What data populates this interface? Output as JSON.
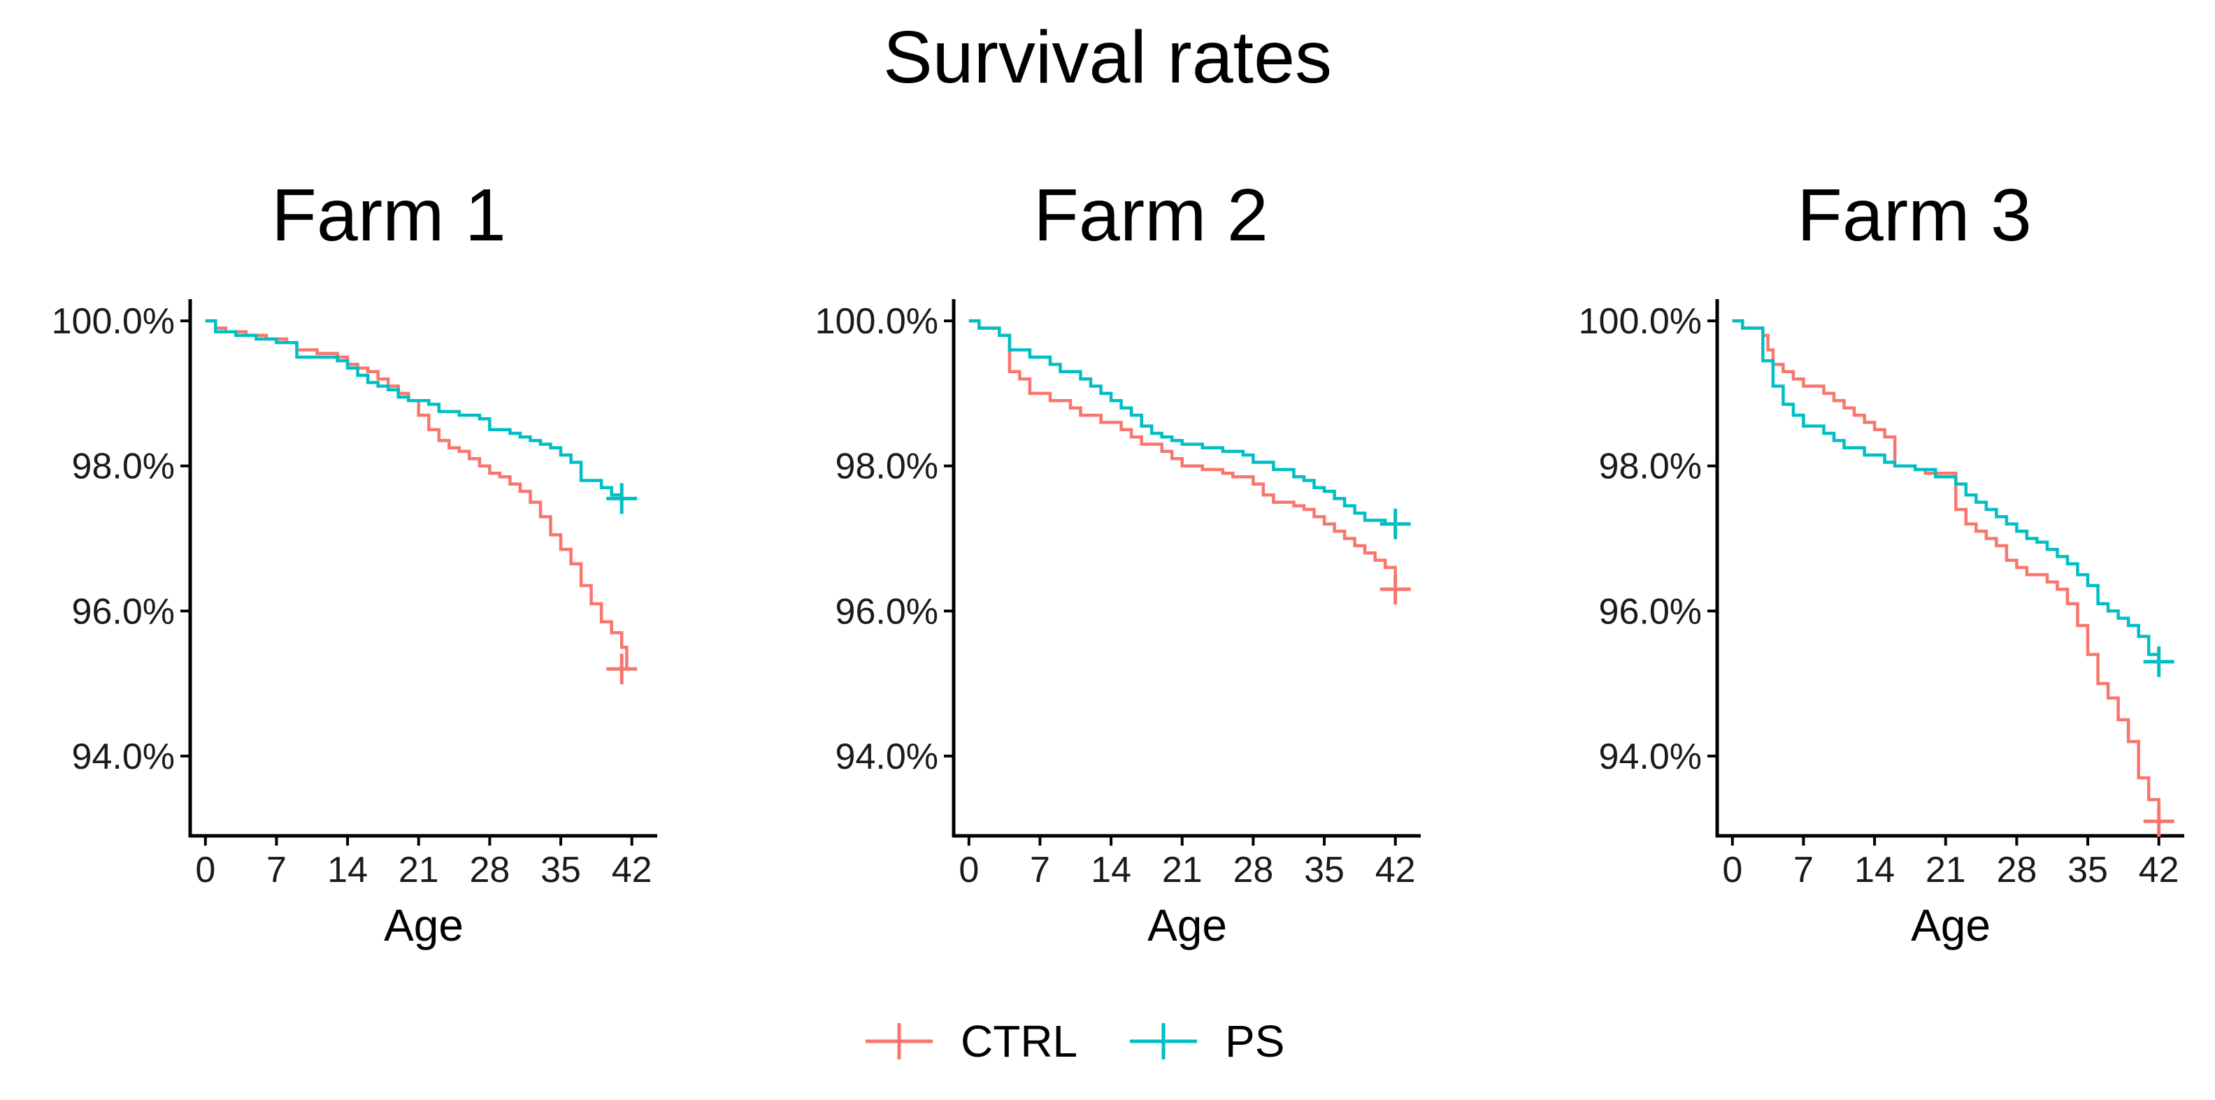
{
  "chart_data": {
    "type": "line",
    "subtype": "kaplan-meier step",
    "title": "Survival rates",
    "legend": {
      "position": "bottom",
      "entries": [
        {
          "name": "CTRL",
          "color": "#F8766D"
        },
        {
          "name": "PS",
          "color": "#00BFC4"
        }
      ]
    },
    "panels": [
      {
        "title": "Farm 1",
        "xlabel": "Age",
        "ylabel": "",
        "xlim": [
          -1.5,
          44.5
        ],
        "ylim": [
          92.9,
          100.3
        ],
        "x_ticks": [
          0,
          7,
          14,
          21,
          28,
          35,
          42
        ],
        "x_tick_labels": [
          "0",
          "7",
          "14",
          "21",
          "28",
          "35",
          "42"
        ],
        "y_ticks": [
          100,
          98,
          96,
          94
        ],
        "y_tick_labels": [
          "100.0%",
          "98.0%",
          "96.0%",
          "94.0%"
        ],
        "series": [
          {
            "name": "CTRL",
            "censor": [
              41,
              95.2
            ],
            "points": [
              [
                0,
                100
              ],
              [
                1,
                99.9
              ],
              [
                2,
                99.85
              ],
              [
                4,
                99.8
              ],
              [
                6,
                99.75
              ],
              [
                8,
                99.7
              ],
              [
                9,
                99.6
              ],
              [
                11,
                99.55
              ],
              [
                13,
                99.5
              ],
              [
                14,
                99.4
              ],
              [
                15,
                99.35
              ],
              [
                16,
                99.3
              ],
              [
                17,
                99.2
              ],
              [
                18,
                99.1
              ],
              [
                19,
                99.0
              ],
              [
                20,
                98.9
              ],
              [
                21,
                98.7
              ],
              [
                22,
                98.5
              ],
              [
                23,
                98.35
              ],
              [
                24,
                98.25
              ],
              [
                25,
                98.2
              ],
              [
                26,
                98.1
              ],
              [
                27,
                98.0
              ],
              [
                28,
                97.9
              ],
              [
                29,
                97.85
              ],
              [
                30,
                97.75
              ],
              [
                31,
                97.65
              ],
              [
                32,
                97.5
              ],
              [
                33,
                97.3
              ],
              [
                34,
                97.05
              ],
              [
                35,
                96.85
              ],
              [
                36,
                96.65
              ],
              [
                37,
                96.35
              ],
              [
                38,
                96.1
              ],
              [
                39,
                95.85
              ],
              [
                40,
                95.7
              ],
              [
                41,
                95.5
              ],
              [
                41.5,
                95.2
              ]
            ]
          },
          {
            "name": "PS",
            "censor": [
              41,
              97.55
            ],
            "points": [
              [
                0,
                100
              ],
              [
                1,
                99.85
              ],
              [
                3,
                99.8
              ],
              [
                5,
                99.75
              ],
              [
                7,
                99.7
              ],
              [
                9,
                99.5
              ],
              [
                13,
                99.45
              ],
              [
                14,
                99.35
              ],
              [
                15,
                99.25
              ],
              [
                16,
                99.15
              ],
              [
                17,
                99.1
              ],
              [
                18,
                99.05
              ],
              [
                19,
                98.95
              ],
              [
                20,
                98.9
              ],
              [
                22,
                98.85
              ],
              [
                23,
                98.75
              ],
              [
                25,
                98.7
              ],
              [
                27,
                98.65
              ],
              [
                28,
                98.5
              ],
              [
                30,
                98.45
              ],
              [
                31,
                98.4
              ],
              [
                32,
                98.35
              ],
              [
                33,
                98.3
              ],
              [
                34,
                98.25
              ],
              [
                35,
                98.15
              ],
              [
                36,
                98.05
              ],
              [
                37,
                97.8
              ],
              [
                39,
                97.7
              ],
              [
                40,
                97.6
              ],
              [
                41,
                97.55
              ],
              [
                41.5,
                97.55
              ]
            ]
          }
        ]
      },
      {
        "title": "Farm 2",
        "xlabel": "Age",
        "ylabel": "",
        "xlim": [
          -1.5,
          44.5
        ],
        "ylim": [
          92.9,
          100.3
        ],
        "x_ticks": [
          0,
          7,
          14,
          21,
          28,
          35,
          42
        ],
        "x_tick_labels": [
          "0",
          "7",
          "14",
          "21",
          "28",
          "35",
          "42"
        ],
        "y_ticks": [
          100,
          98,
          96,
          94
        ],
        "y_tick_labels": [
          "100.0%",
          "98.0%",
          "96.0%",
          "94.0%"
        ],
        "series": [
          {
            "name": "CTRL",
            "censor": [
              42,
              96.3
            ],
            "points": [
              [
                0,
                100
              ],
              [
                1,
                99.9
              ],
              [
                3,
                99.8
              ],
              [
                4,
                99.3
              ],
              [
                5,
                99.2
              ],
              [
                6,
                99.0
              ],
              [
                8,
                98.9
              ],
              [
                10,
                98.8
              ],
              [
                11,
                98.7
              ],
              [
                13,
                98.6
              ],
              [
                15,
                98.5
              ],
              [
                16,
                98.4
              ],
              [
                17,
                98.3
              ],
              [
                19,
                98.2
              ],
              [
                20,
                98.1
              ],
              [
                21,
                98.0
              ],
              [
                23,
                97.95
              ],
              [
                25,
                97.9
              ],
              [
                26,
                97.85
              ],
              [
                28,
                97.75
              ],
              [
                29,
                97.6
              ],
              [
                30,
                97.5
              ],
              [
                32,
                97.45
              ],
              [
                33,
                97.4
              ],
              [
                34,
                97.3
              ],
              [
                35,
                97.2
              ],
              [
                36,
                97.1
              ],
              [
                37,
                97.0
              ],
              [
                38,
                96.9
              ],
              [
                39,
                96.8
              ],
              [
                40,
                96.7
              ],
              [
                41,
                96.6
              ],
              [
                42,
                96.3
              ]
            ]
          },
          {
            "name": "PS",
            "censor": [
              42,
              97.2
            ],
            "points": [
              [
                0,
                100
              ],
              [
                1,
                99.9
              ],
              [
                3,
                99.8
              ],
              [
                4,
                99.6
              ],
              [
                6,
                99.5
              ],
              [
                8,
                99.4
              ],
              [
                9,
                99.3
              ],
              [
                11,
                99.2
              ],
              [
                12,
                99.1
              ],
              [
                13,
                99.0
              ],
              [
                14,
                98.9
              ],
              [
                15,
                98.8
              ],
              [
                16,
                98.7
              ],
              [
                17,
                98.55
              ],
              [
                18,
                98.45
              ],
              [
                19,
                98.4
              ],
              [
                20,
                98.35
              ],
              [
                21,
                98.3
              ],
              [
                23,
                98.25
              ],
              [
                25,
                98.2
              ],
              [
                27,
                98.15
              ],
              [
                28,
                98.05
              ],
              [
                30,
                97.95
              ],
              [
                32,
                97.85
              ],
              [
                33,
                97.8
              ],
              [
                34,
                97.7
              ],
              [
                35,
                97.65
              ],
              [
                36,
                97.55
              ],
              [
                37,
                97.45
              ],
              [
                38,
                97.35
              ],
              [
                39,
                97.25
              ],
              [
                41,
                97.2
              ],
              [
                42,
                97.2
              ]
            ]
          }
        ]
      },
      {
        "title": "Farm 3",
        "xlabel": "Age",
        "ylabel": "",
        "xlim": [
          -1.5,
          44.5
        ],
        "ylim": [
          92.9,
          100.3
        ],
        "x_ticks": [
          0,
          7,
          14,
          21,
          28,
          35,
          42
        ],
        "x_tick_labels": [
          "0",
          "7",
          "14",
          "21",
          "28",
          "35",
          "42"
        ],
        "y_ticks": [
          100,
          98,
          96,
          94
        ],
        "y_tick_labels": [
          "100.0%",
          "98.0%",
          "96.0%",
          "94.0%"
        ],
        "series": [
          {
            "name": "CTRL",
            "censor": [
              42,
              93.1
            ],
            "points": [
              [
                0,
                100
              ],
              [
                1,
                99.9
              ],
              [
                3,
                99.8
              ],
              [
                3.5,
                99.6
              ],
              [
                4,
                99.4
              ],
              [
                5,
                99.3
              ],
              [
                6,
                99.2
              ],
              [
                7,
                99.1
              ],
              [
                9,
                99.0
              ],
              [
                10,
                98.9
              ],
              [
                11,
                98.8
              ],
              [
                12,
                98.7
              ],
              [
                13,
                98.6
              ],
              [
                14,
                98.5
              ],
              [
                15,
                98.4
              ],
              [
                16,
                98.0
              ],
              [
                18,
                97.95
              ],
              [
                19,
                97.9
              ],
              [
                22,
                97.4
              ],
              [
                23,
                97.2
              ],
              [
                24,
                97.1
              ],
              [
                25,
                97.0
              ],
              [
                26,
                96.9
              ],
              [
                27,
                96.7
              ],
              [
                28,
                96.6
              ],
              [
                29,
                96.5
              ],
              [
                31,
                96.4
              ],
              [
                32,
                96.3
              ],
              [
                33,
                96.1
              ],
              [
                34,
                95.8
              ],
              [
                35,
                95.4
              ],
              [
                36,
                95.0
              ],
              [
                37,
                94.8
              ],
              [
                38,
                94.5
              ],
              [
                39,
                94.2
              ],
              [
                40,
                93.7
              ],
              [
                41,
                93.4
              ],
              [
                42,
                93.1
              ]
            ]
          },
          {
            "name": "PS",
            "censor": [
              42,
              95.3
            ],
            "points": [
              [
                0,
                100
              ],
              [
                1,
                99.9
              ],
              [
                3,
                99.45
              ],
              [
                4,
                99.1
              ],
              [
                5,
                98.85
              ],
              [
                6,
                98.7
              ],
              [
                7,
                98.55
              ],
              [
                9,
                98.45
              ],
              [
                10,
                98.35
              ],
              [
                11,
                98.25
              ],
              [
                13,
                98.15
              ],
              [
                15,
                98.05
              ],
              [
                16,
                98.0
              ],
              [
                18,
                97.95
              ],
              [
                20,
                97.85
              ],
              [
                22,
                97.75
              ],
              [
                23,
                97.6
              ],
              [
                24,
                97.5
              ],
              [
                25,
                97.4
              ],
              [
                26,
                97.3
              ],
              [
                27,
                97.2
              ],
              [
                28,
                97.1
              ],
              [
                29,
                97.0
              ],
              [
                30,
                96.95
              ],
              [
                31,
                96.85
              ],
              [
                32,
                96.75
              ],
              [
                33,
                96.65
              ],
              [
                34,
                96.5
              ],
              [
                35,
                96.35
              ],
              [
                36,
                96.1
              ],
              [
                37,
                96.0
              ],
              [
                38,
                95.9
              ],
              [
                39,
                95.8
              ],
              [
                40,
                95.65
              ],
              [
                41,
                95.4
              ],
              [
                42,
                95.3
              ]
            ]
          }
        ]
      }
    ]
  }
}
